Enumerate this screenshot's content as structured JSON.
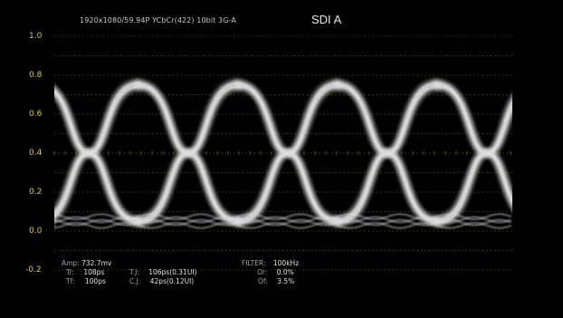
{
  "header": {
    "format": "1920x1080/59.94P YCbCr(422) 10bit 3G-A",
    "channel": "SDI A"
  },
  "scale": {
    "labels": [
      "1.0",
      "0.8",
      "0.6",
      "0.4",
      "0.2",
      "0.0",
      "-0.2"
    ],
    "label_color": "#d8c83a",
    "grid_color": "#4a5a10"
  },
  "measurements": {
    "amp_label": "Amp:",
    "amp_value": "732.7mv",
    "tr_label": "Tr:",
    "tr_value": "108ps",
    "tf_label": "Tf:",
    "tf_value": "100ps",
    "tj_label": "T.J:",
    "tj_value": "106ps(0.31UI)",
    "cj_label": "C.J:",
    "cj_value": "42ps(0.12UI)",
    "filter_label": "FILTER:",
    "filter_value": "100kHz",
    "or_label": "Or:",
    "or_value": "0.0%",
    "of_label": "Of:",
    "of_value": "3.5%"
  },
  "eye": {
    "high_level": 0.75,
    "low_level": 0.05,
    "crossing_level": 0.4,
    "color": "#dedede"
  }
}
